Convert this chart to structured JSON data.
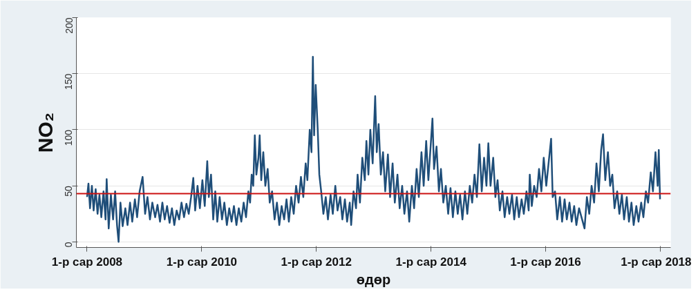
{
  "chart_data": {
    "type": "line",
    "xlabel": "өдөр",
    "ylabel": "NO₂",
    "xlim": [
      "2007-10-25",
      "2018-03-08"
    ],
    "ylim": [
      -5,
      200
    ],
    "xticks": [
      {
        "value": "2008-01-01",
        "label": "1-р сар 2008"
      },
      {
        "value": "2010-01-01",
        "label": "1-р сар 2010"
      },
      {
        "value": "2012-01-01",
        "label": "1-р сар 2012"
      },
      {
        "value": "2014-01-01",
        "label": "1-р сар 2014"
      },
      {
        "value": "2016-01-01",
        "label": "1-р сар 2016"
      },
      {
        "value": "2018-01-01",
        "label": "1-р сар 2018"
      }
    ],
    "yticks": [
      0,
      50,
      100,
      150,
      200
    ],
    "grid": "y",
    "ref_lines": [
      {
        "axis": "y",
        "value": 43,
        "label": null,
        "color": "#cc1111"
      }
    ],
    "x": [
      "2008-01-01",
      "2008-01-10",
      "2008-01-20",
      "2008-02-01",
      "2008-02-12",
      "2008-02-25",
      "2008-03-08",
      "2008-03-20",
      "2008-04-01",
      "2008-04-15",
      "2008-04-28",
      "2008-05-05",
      "2008-05-18",
      "2008-06-01",
      "2008-06-15",
      "2008-06-28",
      "2008-07-10",
      "2008-07-20",
      "2008-08-01",
      "2008-08-15",
      "2008-09-01",
      "2008-09-15",
      "2008-10-01",
      "2008-10-15",
      "2008-11-01",
      "2008-11-15",
      "2008-12-01",
      "2008-12-20",
      "2009-01-05",
      "2009-01-20",
      "2009-02-05",
      "2009-02-20",
      "2009-03-10",
      "2009-03-25",
      "2009-04-10",
      "2009-04-25",
      "2009-05-10",
      "2009-05-25",
      "2009-06-10",
      "2009-06-25",
      "2009-07-10",
      "2009-07-25",
      "2009-08-10",
      "2009-08-25",
      "2009-09-10",
      "2009-09-25",
      "2009-10-10",
      "2009-10-25",
      "2009-11-08",
      "2009-11-20",
      "2009-12-05",
      "2009-12-20",
      "2010-01-05",
      "2010-01-20",
      "2010-02-05",
      "2010-02-15",
      "2010-03-01",
      "2010-03-15",
      "2010-03-28",
      "2010-04-10",
      "2010-04-25",
      "2010-05-10",
      "2010-05-25",
      "2010-06-10",
      "2010-06-25",
      "2010-07-10",
      "2010-07-25",
      "2010-08-10",
      "2010-08-25",
      "2010-09-10",
      "2010-09-25",
      "2010-10-10",
      "2010-10-25",
      "2010-11-05",
      "2010-11-15",
      "2010-11-25",
      "2010-12-05",
      "2010-12-15",
      "2010-12-28",
      "2011-01-05",
      "2011-01-15",
      "2011-01-28",
      "2011-02-10",
      "2011-02-25",
      "2011-03-10",
      "2011-03-25",
      "2011-04-10",
      "2011-04-25",
      "2011-05-10",
      "2011-05-25",
      "2011-06-10",
      "2011-06-25",
      "2011-07-10",
      "2011-07-25",
      "2011-08-10",
      "2011-08-25",
      "2011-09-10",
      "2011-09-25",
      "2011-10-10",
      "2011-10-25",
      "2011-11-05",
      "2011-11-20",
      "2011-12-01",
      "2011-12-10",
      "2011-12-18",
      "2011-12-28",
      "2012-01-10",
      "2012-01-20",
      "2012-02-01",
      "2012-02-15",
      "2012-03-01",
      "2012-03-15",
      "2012-04-01",
      "2012-04-15",
      "2012-05-01",
      "2012-05-15",
      "2012-06-01",
      "2012-06-15",
      "2012-07-01",
      "2012-07-15",
      "2012-08-01",
      "2012-08-10",
      "2012-08-25",
      "2012-09-10",
      "2012-09-20",
      "2012-10-05",
      "2012-10-20",
      "2012-11-05",
      "2012-11-15",
      "2012-11-28",
      "2012-12-10",
      "2012-12-25",
      "2013-01-10",
      "2013-01-20",
      "2013-02-01",
      "2013-02-15",
      "2013-03-01",
      "2013-03-15",
      "2013-04-01",
      "2013-04-15",
      "2013-05-01",
      "2013-05-15",
      "2013-06-01",
      "2013-06-15",
      "2013-07-01",
      "2013-07-15",
      "2013-08-01",
      "2013-08-15",
      "2013-09-01",
      "2013-09-15",
      "2013-10-01",
      "2013-10-15",
      "2013-11-01",
      "2013-11-15",
      "2013-12-01",
      "2013-12-15",
      "2014-01-10",
      "2014-01-20",
      "2014-02-05",
      "2014-02-20",
      "2014-03-05",
      "2014-03-20",
      "2014-04-05",
      "2014-04-20",
      "2014-05-05",
      "2014-05-20",
      "2014-06-05",
      "2014-06-20",
      "2014-07-05",
      "2014-07-20",
      "2014-08-05",
      "2014-08-20",
      "2014-09-05",
      "2014-09-20",
      "2014-10-05",
      "2014-10-20",
      "2014-11-05",
      "2014-11-20",
      "2014-12-05",
      "2014-12-20",
      "2015-01-01",
      "2015-01-15",
      "2015-02-01",
      "2015-02-15",
      "2015-03-01",
      "2015-03-15",
      "2015-04-01",
      "2015-04-15",
      "2015-05-01",
      "2015-05-15",
      "2015-06-01",
      "2015-06-15",
      "2015-07-01",
      "2015-07-15",
      "2015-08-01",
      "2015-08-15",
      "2015-09-01",
      "2015-09-15",
      "2015-09-22",
      "2015-10-05",
      "2015-10-20",
      "2015-11-05",
      "2015-11-20",
      "2015-12-05",
      "2015-12-20",
      "2016-01-05",
      "2016-02-05",
      "2016-02-15",
      "2016-03-01",
      "2016-03-15",
      "2016-04-01",
      "2016-04-15",
      "2016-05-01",
      "2016-05-15",
      "2016-06-01",
      "2016-06-15",
      "2016-07-01",
      "2016-07-15",
      "2016-08-01",
      "2016-09-05",
      "2016-09-20",
      "2016-10-05",
      "2016-10-20",
      "2016-11-05",
      "2016-11-20",
      "2016-12-05",
      "2016-12-20",
      "2017-01-01",
      "2017-01-15",
      "2017-02-01",
      "2017-02-15",
      "2017-03-01",
      "2017-03-15",
      "2017-04-01",
      "2017-04-15",
      "2017-05-01",
      "2017-05-15",
      "2017-06-01",
      "2017-06-15",
      "2017-07-01",
      "2017-07-15",
      "2017-08-01",
      "2017-08-15",
      "2017-09-01",
      "2017-09-15",
      "2017-10-01",
      "2017-10-15",
      "2017-11-01",
      "2017-11-15",
      "2017-12-01",
      "2017-12-15",
      "2017-12-22",
      "2017-12-30"
    ],
    "series": [
      {
        "color": "#1f4e79",
        "values": [
          40,
          52,
          30,
          50,
          28,
          47,
          25,
          42,
          22,
          45,
          20,
          56,
          12,
          42,
          20,
          45,
          15,
          0,
          35,
          14,
          30,
          15,
          35,
          18,
          38,
          22,
          45,
          58,
          25,
          40,
          20,
          35,
          22,
          33,
          18,
          35,
          20,
          32,
          17,
          30,
          15,
          28,
          20,
          35,
          22,
          34,
          25,
          40,
          57,
          28,
          50,
          30,
          55,
          32,
          72,
          40,
          60,
          20,
          45,
          18,
          40,
          20,
          35,
          15,
          30,
          18,
          32,
          15,
          30,
          18,
          35,
          22,
          45,
          35,
          60,
          50,
          95,
          60,
          75,
          95,
          55,
          80,
          50,
          65,
          35,
          45,
          20,
          35,
          15,
          32,
          20,
          38,
          18,
          40,
          25,
          50,
          35,
          58,
          40,
          70,
          55,
          100,
          80,
          165,
          95,
          140,
          100,
          60,
          45,
          25,
          40,
          20,
          42,
          25,
          50,
          28,
          40,
          20,
          38,
          18,
          35,
          15,
          45,
          30,
          60,
          35,
          75,
          55,
          90,
          60,
          100,
          70,
          130,
          80,
          105,
          60,
          80,
          45,
          78,
          40,
          70,
          35,
          60,
          30,
          50,
          25,
          45,
          18,
          50,
          30,
          65,
          40,
          80,
          50,
          90,
          55,
          110,
          65,
          85,
          45,
          65,
          35,
          50,
          25,
          48,
          22,
          45,
          25,
          42,
          20,
          45,
          25,
          50,
          35,
          60,
          40,
          87,
          45,
          75,
          50,
          88,
          50,
          75,
          40,
          55,
          28,
          45,
          22,
          40,
          25,
          42,
          20,
          40,
          22,
          38,
          25,
          45,
          28,
          60,
          32,
          50,
          40,
          65,
          45,
          75,
          50,
          92,
          40,
          45,
          20,
          40,
          18,
          38,
          20,
          35,
          18,
          32,
          15,
          30,
          12,
          40,
          25,
          50,
          35,
          70,
          45,
          82,
          96,
          55,
          80,
          50,
          60,
          30,
          45,
          25,
          42,
          20,
          40,
          18,
          35,
          15,
          32,
          18,
          35,
          22,
          45,
          35,
          62,
          45,
          80,
          50,
          82,
          38
        ]
      }
    ]
  }
}
